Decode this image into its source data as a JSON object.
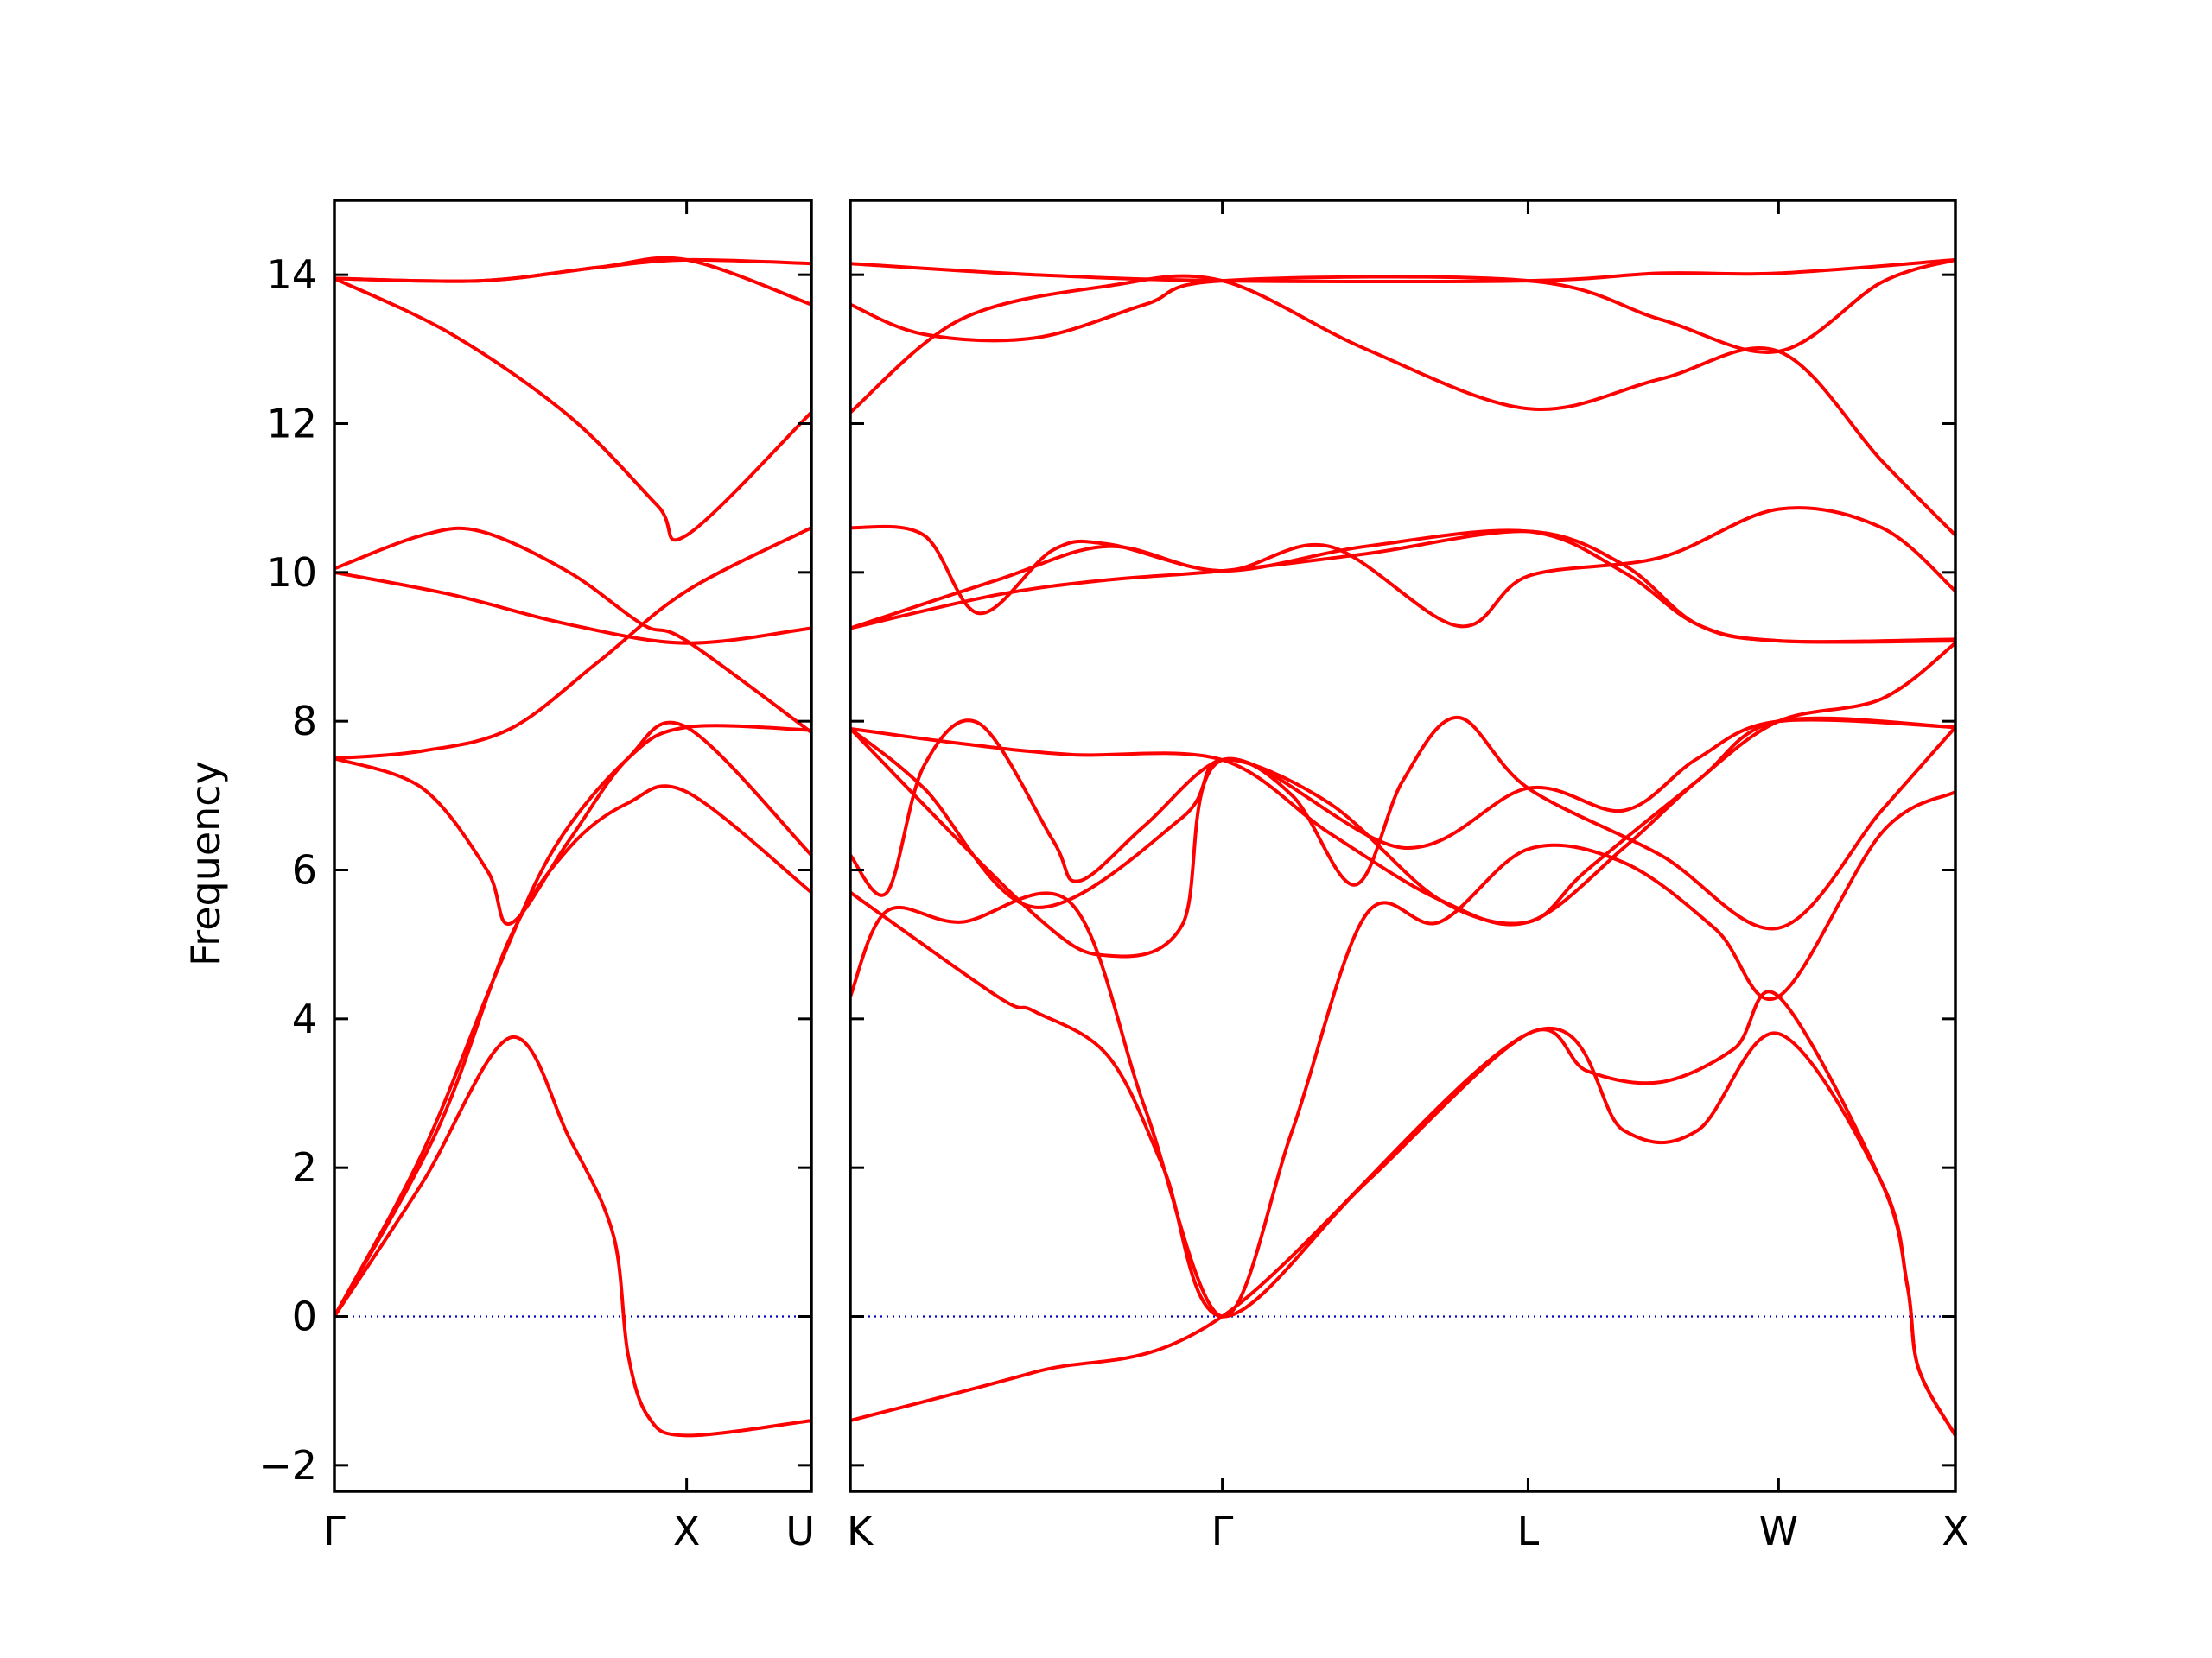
{
  "chart_data": {
    "type": "line",
    "ylabel": "Frequency",
    "ylim": [
      -2.35,
      15.0
    ],
    "yticks": [
      -2,
      0,
      2,
      4,
      6,
      8,
      10,
      12,
      14
    ],
    "ytick_labels": [
      "−2",
      "0",
      "2",
      "4",
      "6",
      "8",
      "10",
      "12",
      "14"
    ],
    "grid": false,
    "colors": {
      "bands": "#ff0000",
      "zero_line": "#0000cc",
      "frame": "#000000"
    },
    "panels": [
      {
        "name": "left-panel",
        "xlim": [
          0,
          1.625
        ],
        "xticks": [
          0,
          1.2,
          1.625
        ],
        "xtick_labels": [
          "Γ",
          "X",
          "U"
        ],
        "series": [
          {
            "points": [
              [
                0,
                0
              ],
              [
                0.3,
                1.8
              ],
              [
                0.6,
                3.75
              ],
              [
                0.8,
                2.4
              ],
              [
                0.95,
                1.1
              ],
              [
                1.0,
                -0.5
              ],
              [
                1.07,
                -1.35
              ],
              [
                1.2,
                -1.6
              ],
              [
                1.625,
                -1.4
              ]
            ]
          },
          {
            "points": [
              [
                0,
                0
              ],
              [
                0.35,
                2.5
              ],
              [
                0.6,
                5.1
              ],
              [
                0.8,
                6.3
              ],
              [
                1.0,
                6.9
              ],
              [
                1.2,
                7.05
              ],
              [
                1.625,
                5.7
              ]
            ]
          },
          {
            "points": [
              [
                0,
                0
              ],
              [
                0.3,
                2.2
              ],
              [
                0.55,
                4.6
              ],
              [
                0.75,
                6.3
              ],
              [
                1.0,
                7.5
              ],
              [
                1.2,
                7.92
              ],
              [
                1.625,
                7.88
              ]
            ]
          },
          {
            "points": [
              [
                0,
                7.5
              ],
              [
                0.3,
                7.1
              ],
              [
                0.52,
                6.0
              ],
              [
                0.6,
                5.28
              ],
              [
                0.8,
                6.4
              ],
              [
                1.0,
                7.5
              ],
              [
                1.2,
                7.92
              ],
              [
                1.625,
                6.2
              ]
            ]
          },
          {
            "points": [
              [
                0,
                7.5
              ],
              [
                0.3,
                7.6
              ],
              [
                0.6,
                7.9
              ],
              [
                0.9,
                8.8
              ],
              [
                1.2,
                9.75
              ],
              [
                1.625,
                10.6
              ]
            ]
          },
          {
            "points": [
              [
                0,
                10.05
              ],
              [
                0.3,
                10.5
              ],
              [
                0.5,
                10.55
              ],
              [
                0.8,
                10.0
              ],
              [
                1.05,
                9.3
              ],
              [
                1.2,
                9.08
              ],
              [
                1.625,
                7.85
              ]
            ]
          },
          {
            "points": [
              [
                0,
                10.0
              ],
              [
                0.4,
                9.7
              ],
              [
                0.8,
                9.3
              ],
              [
                1.2,
                9.05
              ],
              [
                1.625,
                9.25
              ]
            ]
          },
          {
            "points": [
              [
                0,
                13.95
              ],
              [
                0.4,
                13.2
              ],
              [
                0.8,
                12.1
              ],
              [
                1.1,
                10.9
              ],
              [
                1.2,
                10.5
              ],
              [
                1.625,
                12.15
              ]
            ]
          },
          {
            "points": [
              [
                0,
                13.95
              ],
              [
                0.5,
                13.92
              ],
              [
                0.9,
                14.1
              ],
              [
                1.2,
                14.2
              ],
              [
                1.625,
                13.6
              ]
            ]
          },
          {
            "points": [
              [
                0,
                13.95
              ],
              [
                0.5,
                13.92
              ],
              [
                0.9,
                14.1
              ],
              [
                1.2,
                14.2
              ],
              [
                1.625,
                14.15
              ]
            ]
          }
        ]
      },
      {
        "name": "right-panel",
        "xlim": [
          0,
          3.0
        ],
        "xticks": [
          0,
          1.01,
          1.84,
          2.52,
          3.0
        ],
        "xtick_labels": [
          "K",
          "Γ",
          "L",
          "W",
          "X"
        ],
        "series": [
          {
            "points": [
              [
                0,
                -1.4
              ],
              [
                0.5,
                -0.75
              ],
              [
                1.01,
                0.0
              ],
              [
                1.84,
                3.8
              ],
              [
                2.1,
                2.5
              ],
              [
                2.3,
                2.5
              ],
              [
                2.52,
                3.8
              ],
              [
                2.8,
                1.8
              ],
              [
                2.87,
                0.4
              ],
              [
                2.9,
                -0.7
              ],
              [
                3.0,
                -1.6
              ]
            ]
          },
          {
            "points": [
              [
                0,
                5.7
              ],
              [
                0.4,
                4.3
              ],
              [
                0.5,
                4.1
              ],
              [
                0.7,
                3.5
              ],
              [
                0.85,
                2.0
              ],
              [
                1.01,
                0.0
              ],
              [
                1.4,
                1.8
              ],
              [
                1.84,
                3.8
              ],
              [
                2.0,
                3.3
              ],
              [
                2.2,
                3.15
              ],
              [
                2.4,
                3.6
              ],
              [
                2.52,
                4.3
              ],
              [
                2.8,
                1.8
              ],
              [
                2.87,
                0.4
              ],
              [
                2.9,
                -0.7
              ],
              [
                3.0,
                -1.6
              ]
            ]
          },
          {
            "points": [
              [
                0,
                4.3
              ],
              [
                0.1,
                5.45
              ],
              [
                0.3,
                5.3
              ],
              [
                0.6,
                5.55
              ],
              [
                0.8,
                2.8
              ],
              [
                1.01,
                0.0
              ],
              [
                1.2,
                2.5
              ],
              [
                1.4,
                5.4
              ],
              [
                1.6,
                5.3
              ],
              [
                1.84,
                6.28
              ],
              [
                2.1,
                6.1
              ],
              [
                2.35,
                5.2
              ],
              [
                2.52,
                4.3
              ],
              [
                2.8,
                6.5
              ],
              [
                3.0,
                7.05
              ]
            ]
          },
          {
            "points": [
              [
                0,
                6.2
              ],
              [
                0.1,
                5.7
              ],
              [
                0.2,
                7.4
              ],
              [
                0.35,
                7.97
              ],
              [
                0.55,
                6.4
              ],
              [
                0.62,
                5.85
              ],
              [
                0.8,
                6.6
              ],
              [
                1.01,
                7.48
              ],
              [
                1.2,
                7.0
              ],
              [
                1.37,
                5.8
              ],
              [
                1.5,
                7.2
              ],
              [
                1.65,
                8.05
              ],
              [
                1.84,
                7.1
              ],
              [
                2.2,
                6.2
              ],
              [
                2.52,
                5.22
              ],
              [
                2.8,
                6.8
              ],
              [
                3.0,
                7.92
              ]
            ]
          },
          {
            "points": [
              [
                0,
                7.9
              ],
              [
                0.3,
                7.7
              ],
              [
                0.6,
                7.55
              ],
              [
                1.01,
                7.48
              ],
              [
                1.3,
                6.5
              ],
              [
                1.6,
                5.6
              ],
              [
                1.84,
                5.3
              ],
              [
                2.1,
                6.3
              ],
              [
                2.3,
                7.2
              ],
              [
                2.52,
                8.0
              ],
              [
                2.8,
                8.3
              ],
              [
                3.0,
                9.05
              ]
            ]
          },
          {
            "points": [
              [
                0,
                7.9
              ],
              [
                0.2,
                7.1
              ],
              [
                0.5,
                5.5
              ],
              [
                0.9,
                6.7
              ],
              [
                1.01,
                7.48
              ],
              [
                1.3,
                6.9
              ],
              [
                1.6,
                5.6
              ],
              [
                1.84,
                5.3
              ],
              [
                2.0,
                6.0
              ],
              [
                2.3,
                7.2
              ],
              [
                2.52,
                8.0
              ],
              [
                3.0,
                7.92
              ]
            ]
          },
          {
            "points": [
              [
                0,
                7.9
              ],
              [
                0.5,
                5.4
              ],
              [
                0.7,
                4.85
              ],
              [
                0.9,
                5.25
              ],
              [
                1.01,
                7.48
              ],
              [
                1.5,
                6.3
              ],
              [
                1.84,
                7.1
              ],
              [
                2.1,
                6.8
              ],
              [
                2.3,
                7.5
              ],
              [
                2.52,
                8.0
              ],
              [
                3.0,
                7.92
              ]
            ]
          },
          {
            "points": [
              [
                0,
                9.25
              ],
              [
                0.4,
                9.7
              ],
              [
                0.7,
                9.9
              ],
              [
                1.01,
                10.02
              ],
              [
                1.4,
                10.25
              ],
              [
                1.84,
                10.55
              ],
              [
                2.1,
                10.1
              ],
              [
                2.3,
                9.3
              ],
              [
                2.52,
                9.08
              ],
              [
                3.0,
                9.08
              ]
            ]
          },
          {
            "points": [
              [
                0,
                9.25
              ],
              [
                0.4,
                9.9
              ],
              [
                0.7,
                10.35
              ],
              [
                1.01,
                10.02
              ],
              [
                1.4,
                10.35
              ],
              [
                1.84,
                10.55
              ],
              [
                2.1,
                10.0
              ],
              [
                2.3,
                9.3
              ],
              [
                2.52,
                9.08
              ],
              [
                3.0,
                9.1
              ]
            ]
          },
          {
            "points": [
              [
                0,
                10.6
              ],
              [
                0.2,
                10.5
              ],
              [
                0.35,
                9.45
              ],
              [
                0.55,
                10.3
              ],
              [
                0.7,
                10.38
              ],
              [
                1.01,
                10.02
              ],
              [
                1.3,
                10.35
              ],
              [
                1.65,
                9.28
              ],
              [
                1.84,
                9.95
              ],
              [
                2.2,
                10.2
              ],
              [
                2.52,
                10.85
              ],
              [
                2.8,
                10.6
              ],
              [
                3.0,
                9.75
              ]
            ]
          },
          {
            "points": [
              [
                0,
                12.15
              ],
              [
                0.3,
                13.4
              ],
              [
                0.7,
                13.85
              ],
              [
                1.01,
                13.92
              ],
              [
                1.4,
                13.0
              ],
              [
                1.84,
                12.2
              ],
              [
                2.2,
                12.6
              ],
              [
                2.52,
                12.97
              ],
              [
                2.8,
                11.5
              ],
              [
                3.0,
                10.5
              ]
            ]
          },
          {
            "points": [
              [
                0,
                13.6
              ],
              [
                0.2,
                13.2
              ],
              [
                0.5,
                13.15
              ],
              [
                0.8,
                13.6
              ],
              [
                1.01,
                13.92
              ],
              [
                1.84,
                13.92
              ],
              [
                2.2,
                13.4
              ],
              [
                2.52,
                12.97
              ],
              [
                2.8,
                13.9
              ],
              [
                3.0,
                14.2
              ]
            ]
          },
          {
            "points": [
              [
                0,
                14.15
              ],
              [
                0.5,
                14.0
              ],
              [
                1.01,
                13.92
              ],
              [
                1.84,
                13.92
              ],
              [
                2.2,
                14.02
              ],
              [
                2.52,
                14.02
              ],
              [
                3.0,
                14.2
              ]
            ]
          }
        ]
      }
    ]
  }
}
